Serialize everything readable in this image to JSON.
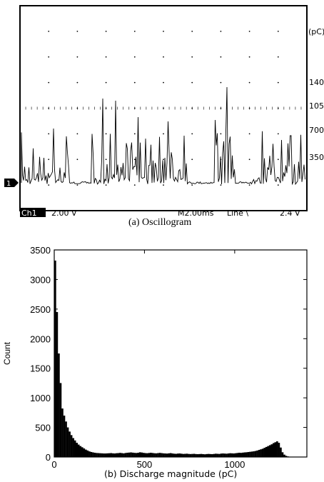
{
  "chart_data": [
    {
      "type": "line",
      "caption": "(a) Oscillogram",
      "unit_label": "(pC)",
      "right_labels": [
        "140",
        "105",
        "700",
        "350"
      ],
      "channel_marker": "1",
      "status": {
        "channel": "Ch1",
        "volts_div": "2.00 V",
        "timebase": "M2.00ms",
        "trigger": "Line \\",
        "trigger_level": "2.4 V"
      },
      "grid": true
    },
    {
      "type": "bar",
      "caption": "(b)  Discharge magnitude (pC)",
      "ylabel": "Count",
      "xlim": [
        0,
        1400
      ],
      "ylim": [
        0,
        3500
      ],
      "xticks": [
        0,
        500,
        1000
      ],
      "yticks": [
        0,
        500,
        1000,
        1500,
        2000,
        2500,
        3000,
        3500
      ],
      "bin_width": 10,
      "bins_start": [
        0,
        10,
        20,
        30,
        40,
        50,
        60,
        70,
        80,
        90,
        100,
        110,
        120,
        130,
        140,
        150,
        160,
        170,
        180,
        190,
        200,
        210,
        220,
        230,
        240,
        250,
        260,
        270,
        280,
        290,
        300,
        310,
        320,
        330,
        340,
        350,
        360,
        370,
        380,
        390,
        400,
        410,
        420,
        430,
        440,
        450,
        460,
        470,
        480,
        490,
        500,
        510,
        520,
        530,
        540,
        550,
        560,
        570,
        580,
        590,
        600,
        610,
        620,
        630,
        640,
        650,
        660,
        670,
        680,
        690,
        700,
        710,
        720,
        730,
        740,
        750,
        760,
        770,
        780,
        790,
        800,
        810,
        820,
        830,
        840,
        850,
        860,
        870,
        880,
        890,
        900,
        910,
        920,
        930,
        940,
        950,
        960,
        970,
        980,
        990,
        1000,
        1010,
        1020,
        1030,
        1040,
        1050,
        1060,
        1070,
        1080,
        1090,
        1100,
        1110,
        1120,
        1130,
        1140,
        1150,
        1160,
        1170,
        1180,
        1190,
        1200,
        1210,
        1220,
        1230,
        1240,
        1250,
        1260,
        1270,
        1280,
        1290,
        1300,
        1310,
        1320,
        1330,
        1340,
        1350,
        1360,
        1370,
        1380,
        1390
      ],
      "counts": [
        3320,
        2450,
        1750,
        1250,
        820,
        700,
        600,
        500,
        430,
        370,
        320,
        280,
        240,
        210,
        185,
        165,
        145,
        125,
        110,
        95,
        85,
        78,
        72,
        68,
        66,
        64,
        62,
        60,
        60,
        62,
        64,
        66,
        62,
        60,
        64,
        66,
        70,
        66,
        62,
        68,
        72,
        75,
        78,
        74,
        70,
        68,
        72,
        80,
        76,
        70,
        66,
        64,
        68,
        72,
        68,
        64,
        62,
        66,
        70,
        66,
        62,
        60,
        58,
        62,
        66,
        60,
        56,
        54,
        58,
        60,
        56,
        52,
        54,
        56,
        52,
        50,
        52,
        54,
        50,
        48,
        50,
        52,
        48,
        46,
        50,
        52,
        50,
        48,
        52,
        56,
        54,
        52,
        58,
        60,
        58,
        56,
        60,
        64,
        62,
        60,
        64,
        68,
        72,
        70,
        74,
        78,
        80,
        84,
        88,
        92,
        96,
        102,
        110,
        120,
        130,
        140,
        155,
        170,
        185,
        200,
        215,
        235,
        250,
        265,
        240,
        160,
        80,
        40,
        20,
        10,
        5,
        3,
        0,
        0,
        0,
        0,
        0,
        0,
        0,
        0
      ]
    }
  ]
}
